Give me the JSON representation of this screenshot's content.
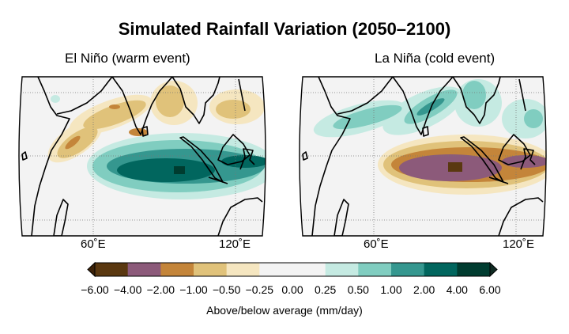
{
  "title": "Simulated Rainfall Variation (2050–2100)",
  "panels": [
    {
      "title": "El Niño (warm event)",
      "lon_ticks": [
        "60˚E",
        "120˚E"
      ]
    },
    {
      "title": "La Niña (cold event)",
      "lon_ticks": [
        "60˚E",
        "120˚E"
      ]
    }
  ],
  "colorbar": {
    "labels": [
      "−6.00",
      "−4.00",
      "−2.00",
      "−1.00",
      "−0.50",
      "−0.25",
      "0.00",
      "0.25",
      "0.50",
      "1.00",
      "2.00",
      "4.00",
      "6.00"
    ],
    "colors": [
      "#5a3810",
      "#8c5a7a",
      "#c4853a",
      "#e0c27a",
      "#f5e6c0",
      "#f3f3f3",
      "#f3f3f3",
      "#c5eae2",
      "#80cdc0",
      "#35978f",
      "#01665e",
      "#003c30"
    ],
    "low_extend_color": "#3c2208",
    "high_extend_color": "#0f2a22",
    "label": "Above/below average (mm/day)"
  }
}
